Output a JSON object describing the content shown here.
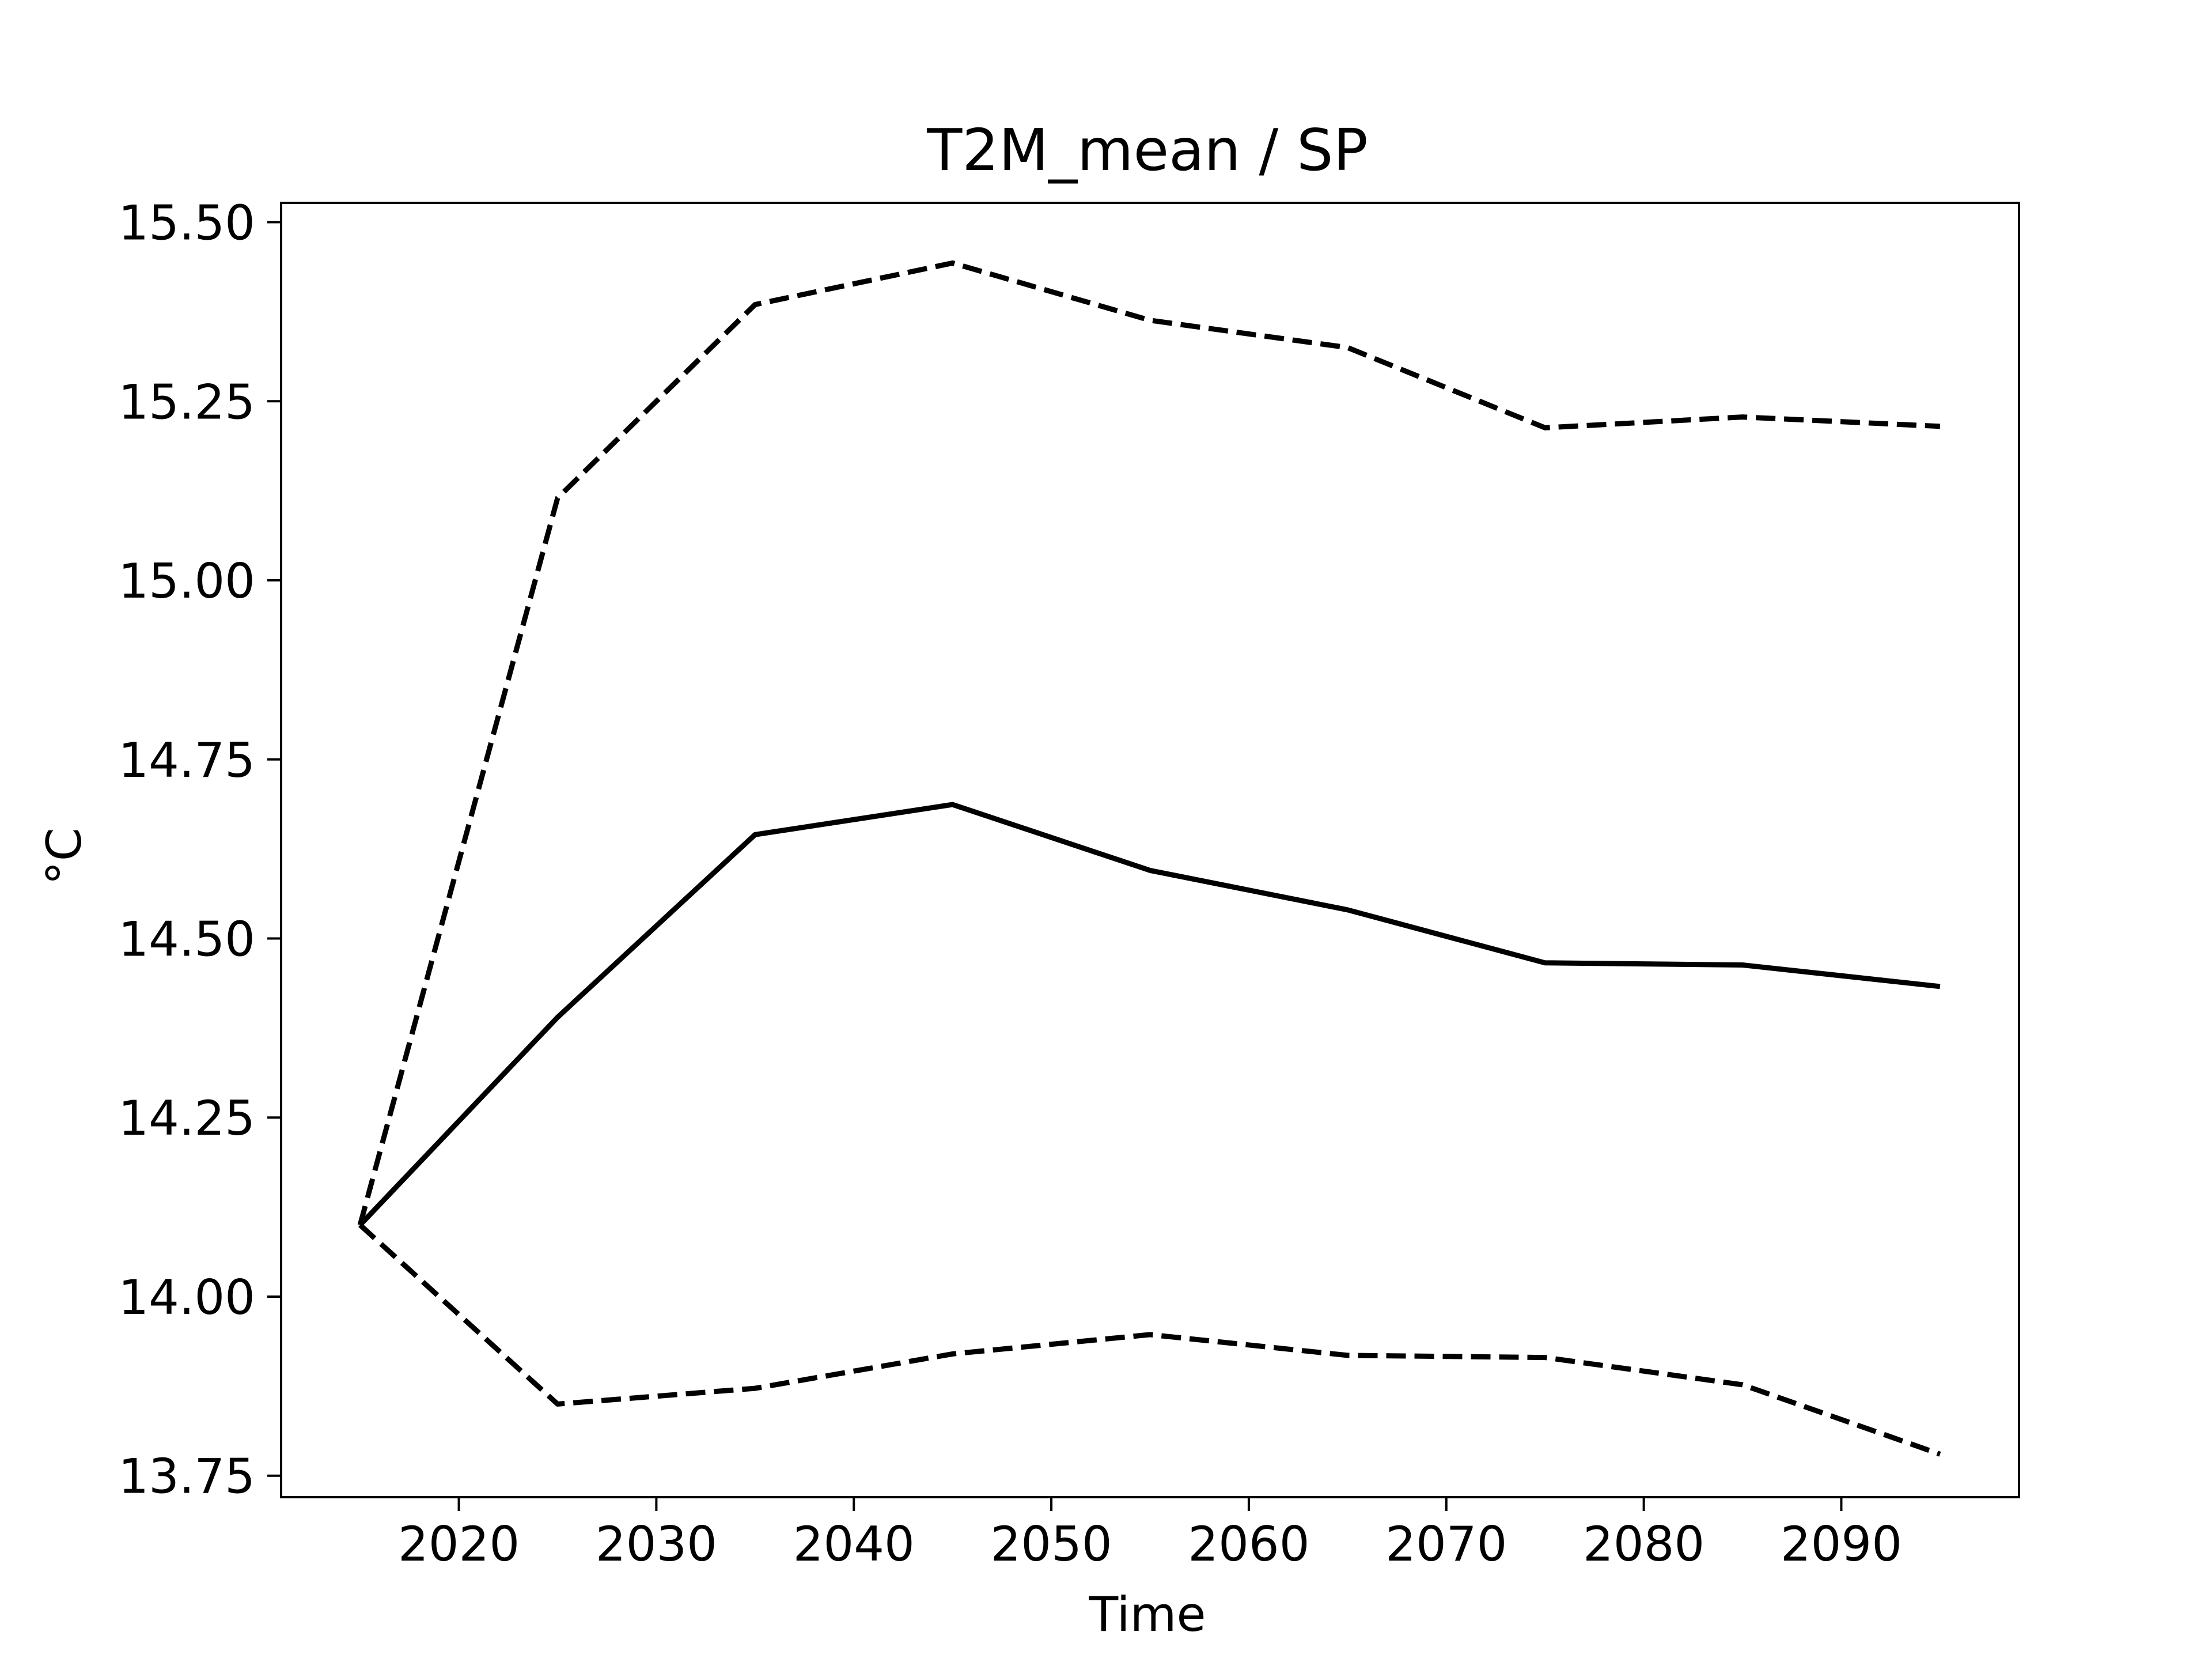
{
  "chart_data": {
    "type": "line",
    "title": "T2M_mean / SP",
    "xlabel": "Time",
    "ylabel": "°C",
    "x": [
      2015,
      2025,
      2035,
      2045,
      2055,
      2065,
      2075,
      2085,
      2095
    ],
    "series": [
      {
        "style": "solid",
        "values": [
          14.1,
          14.39,
          14.645,
          14.687,
          14.595,
          14.54,
          14.466,
          14.463,
          14.433
        ]
      },
      {
        "style": "dashed",
        "values": [
          14.1,
          15.115,
          15.385,
          15.443,
          15.363,
          15.325,
          15.213,
          15.228,
          15.215
        ]
      },
      {
        "style": "dashed",
        "values": [
          14.1,
          13.85,
          13.872,
          13.92,
          13.947,
          13.918,
          13.915,
          13.877,
          13.78
        ]
      }
    ],
    "xlim": [
      2011,
      2099
    ],
    "ylim": [
      13.72,
      15.527
    ],
    "xticks": [
      2020,
      2030,
      2040,
      2050,
      2060,
      2070,
      2080,
      2090
    ],
    "xtick_labels": [
      "2020",
      "2030",
      "2040",
      "2050",
      "2060",
      "2070",
      "2080",
      "2090"
    ],
    "yticks": [
      13.75,
      14.0,
      14.25,
      14.5,
      14.75,
      15.0,
      15.25,
      15.5
    ],
    "ytick_labels": [
      "13.75",
      "14.00",
      "14.25",
      "14.50",
      "14.75",
      "15.00",
      "15.25",
      "15.50"
    ],
    "grid": false,
    "legend": "none",
    "line_color": "#000000"
  }
}
